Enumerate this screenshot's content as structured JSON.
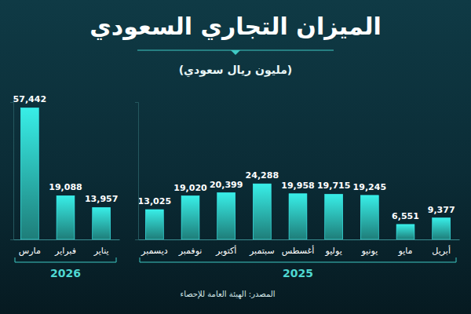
{
  "chart_data": {
    "type": "bar",
    "title": "الميزان التجاري السعودي",
    "subtitle": "(مليون ريال سعودي)",
    "source": "المصدر: الهيئة العامة للإحصاء",
    "color": "#2fc7c1",
    "data_labels": true,
    "grid": false,
    "tick_labels": "x",
    "ylim": [
      0,
      60000
    ],
    "yticks": [],
    "groups": [
      {
        "name": "2025",
        "categories": [
          "أبريل",
          "مايو",
          "يونيو",
          "يوليو",
          "أغسطس",
          "سبتمبر",
          "أكتوبر",
          "نوفمبر",
          "ديسمبر"
        ],
        "values": [
          9377,
          6551,
          19245,
          19715,
          19958,
          24288,
          20399,
          19020,
          13025
        ],
        "value_labels": [
          "9,377",
          "6,551",
          "19,245",
          "19,715",
          "19,958",
          "24,288",
          "20,399",
          "19,020",
          "13,025"
        ]
      },
      {
        "name": "2026",
        "categories": [
          "يناير",
          "فبراير",
          "مارس"
        ],
        "values": [
          13957,
          19088,
          57442
        ],
        "value_labels": [
          "13,957",
          "19,088",
          "57,442"
        ]
      }
    ]
  }
}
